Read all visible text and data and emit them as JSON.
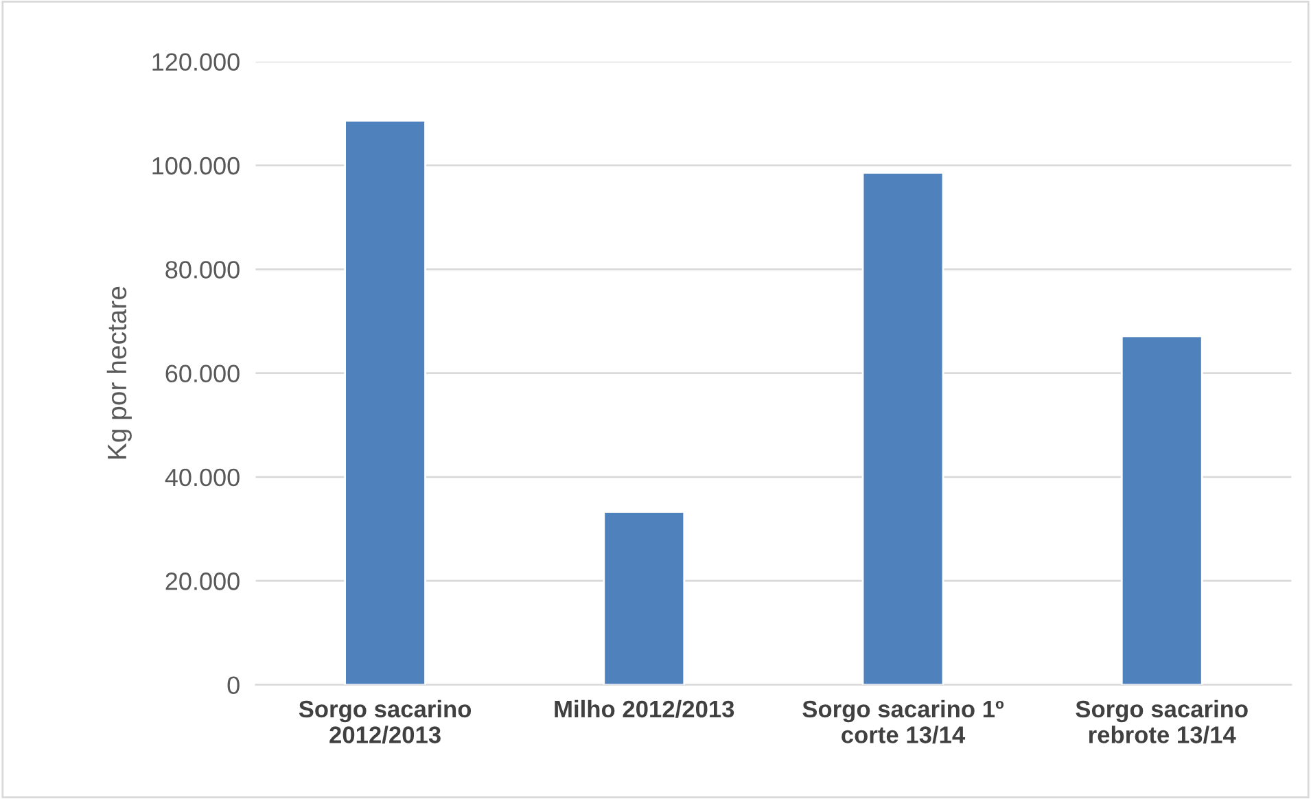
{
  "chart_data": {
    "type": "bar",
    "ylabel": "Kg por hectare",
    "categories": [
      "Sorgo sacarino\n2012/2013",
      "Milho 2012/2013",
      "Sorgo sacarino 1º\ncorte 13/14",
      "Sorgo sacarino\nrebrote 13/14"
    ],
    "values": [
      108600,
      33300,
      98600,
      67100
    ],
    "color": "#4f81bd",
    "ylim": [
      0,
      120000
    ],
    "yticks": [
      {
        "value": 0,
        "label": "0"
      },
      {
        "value": 20000,
        "label": "20.000"
      },
      {
        "value": 40000,
        "label": "40.000"
      },
      {
        "value": 60000,
        "label": "60.000"
      },
      {
        "value": 80000,
        "label": "80.000"
      },
      {
        "value": 100000,
        "label": "100.000"
      },
      {
        "value": 120000,
        "label": "120.000"
      }
    ],
    "grid": "y",
    "legend": false
  }
}
